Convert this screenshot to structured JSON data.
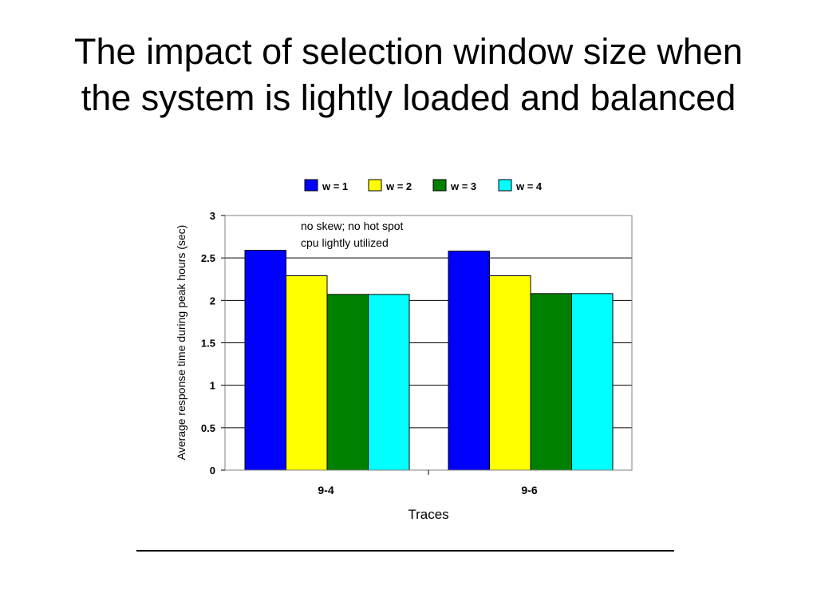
{
  "slide": {
    "title_line1": "The impact of selection window size when",
    "title_line2": "the system is lightly loaded and balanced"
  },
  "chart_data": {
    "type": "bar",
    "categories": [
      "9-4",
      "9-6"
    ],
    "series": [
      {
        "name": "w = 1",
        "color": "#0000ff",
        "values": [
          2.59,
          2.58
        ]
      },
      {
        "name": "w = 2",
        "color": "#ffff00",
        "values": [
          2.29,
          2.29
        ]
      },
      {
        "name": "w = 3",
        "color": "#008000",
        "values": [
          2.07,
          2.08
        ]
      },
      {
        "name": "w = 4",
        "color": "#00ffff",
        "values": [
          2.07,
          2.08
        ]
      }
    ],
    "xlabel": "Traces",
    "ylabel": "Average response time during peak hours (sec)",
    "ylim": [
      0,
      3
    ],
    "yticks": [
      0,
      0.5,
      1,
      1.5,
      2,
      2.5,
      3
    ],
    "ytick_labels": [
      "0",
      "0.5",
      "1",
      "1.5",
      "2",
      "2.5",
      "3"
    ],
    "grid": true,
    "legend_position": "top",
    "annotation_lines": [
      "no skew; no hot spot",
      "cpu lightly utilized"
    ]
  }
}
